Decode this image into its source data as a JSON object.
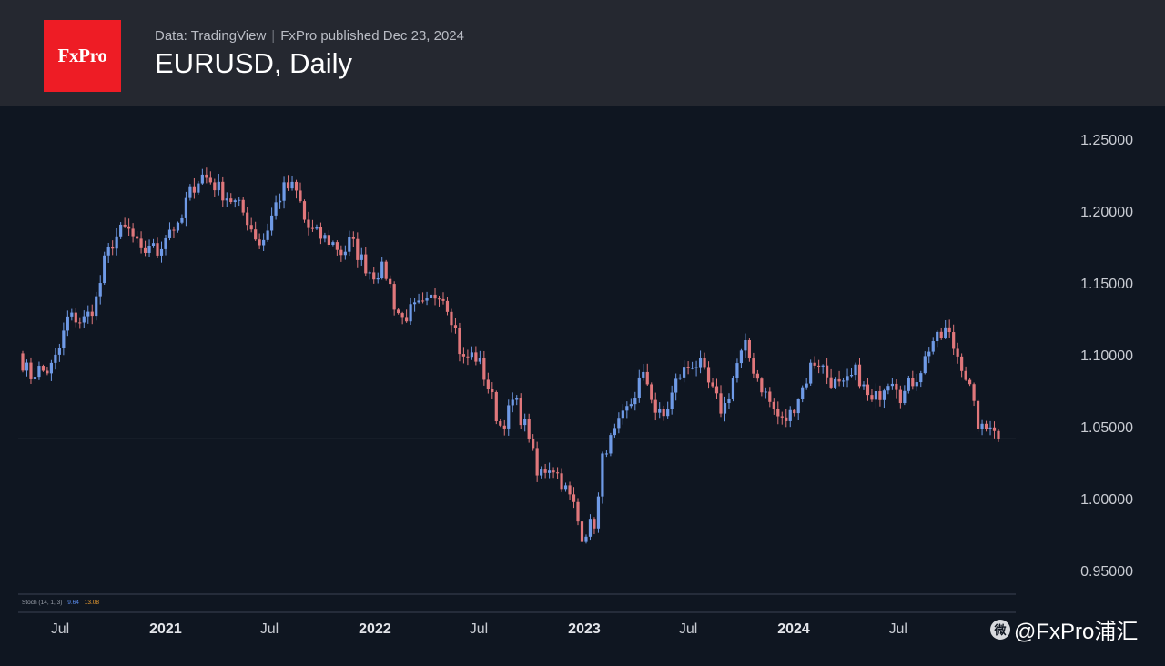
{
  "header": {
    "logo_text": "FxPro",
    "data_source": "Data: TradingView",
    "published": "FxPro published Dec 23, 2024",
    "title": "EURUSD, Daily"
  },
  "indicator": {
    "label": "Stoch (14, 1, 3)",
    "k_value": "9.64",
    "d_value": "13.08",
    "k_color": "#5b8def",
    "d_color": "#f0a030"
  },
  "watermark": {
    "text": "@FxPro浦汇",
    "icon": "weibo-icon"
  },
  "colors": {
    "up": "#6f9ae6",
    "down": "#e0777b",
    "background": "#0f1621",
    "header": "#252830",
    "brand": "#ee1c25"
  },
  "chart_data": {
    "type": "candlestick",
    "title": "EURUSD, Daily",
    "y_ticks": [
      "1.25000",
      "1.20000",
      "1.15000",
      "1.10000",
      "1.05000",
      "1.00000",
      "0.95000"
    ],
    "y_tick_values": [
      1.25,
      1.2,
      1.15,
      1.1,
      1.05,
      1.0,
      0.95
    ],
    "ylim": [
      0.945,
      1.26
    ],
    "x_ticks": [
      {
        "label": "Jul",
        "date": "2020-07-01",
        "bold": false
      },
      {
        "label": "2021",
        "date": "2021-01-01",
        "bold": true
      },
      {
        "label": "Jul",
        "date": "2021-07-01",
        "bold": false
      },
      {
        "label": "2022",
        "date": "2022-01-01",
        "bold": true
      },
      {
        "label": "Jul",
        "date": "2022-07-01",
        "bold": false
      },
      {
        "label": "2023",
        "date": "2023-01-01",
        "bold": true
      },
      {
        "label": "Jul",
        "date": "2023-07-01",
        "bold": false
      },
      {
        "label": "2024",
        "date": "2024-01-01",
        "bold": true
      },
      {
        "label": "Jul",
        "date": "2024-07-01",
        "bold": false
      }
    ],
    "x_range": [
      "2020-04-27",
      "2024-12-23"
    ],
    "last_price": 1.0415,
    "series": [
      {
        "name": "EURUSD",
        "close": [
          1.095,
          1.085,
          1.09,
          1.088,
          1.092,
          1.105,
          1.125,
          1.126,
          1.123,
          1.129,
          1.14,
          1.165,
          1.178,
          1.185,
          1.188,
          1.18,
          1.168,
          1.178,
          1.17,
          1.182,
          1.19,
          1.186,
          1.208,
          1.218,
          1.225,
          1.222,
          1.217,
          1.212,
          1.208,
          1.203,
          1.196,
          1.185,
          1.176,
          1.19,
          1.205,
          1.215,
          1.217,
          1.211,
          1.19,
          1.185,
          1.182,
          1.18,
          1.176,
          1.17,
          1.18,
          1.17,
          1.162,
          1.156,
          1.16,
          1.155,
          1.133,
          1.125,
          1.13,
          1.133,
          1.133,
          1.14,
          1.145,
          1.135,
          1.12,
          1.095,
          1.1,
          1.098,
          1.085,
          1.07,
          1.05,
          1.057,
          1.07,
          1.055,
          1.045,
          1.015,
          1.02,
          1.024,
          1.015,
          1.005,
          0.995,
          0.975,
          0.98,
          0.985,
          1.035,
          1.04,
          1.05,
          1.06,
          1.07,
          1.085,
          1.08,
          1.06,
          1.056,
          1.07,
          1.085,
          1.09,
          1.095,
          1.092,
          1.08,
          1.07,
          1.06,
          1.077,
          1.095,
          1.105,
          1.092,
          1.08,
          1.07,
          1.06,
          1.053,
          1.058,
          1.07,
          1.08,
          1.095,
          1.095,
          1.085,
          1.08,
          1.076,
          1.082,
          1.089,
          1.075,
          1.066,
          1.073,
          1.083,
          1.085,
          1.07,
          1.079,
          1.085,
          1.095,
          1.11,
          1.11,
          1.118,
          1.105,
          1.095,
          1.08,
          1.055,
          1.045,
          1.055,
          1.045
        ]
      }
    ]
  }
}
